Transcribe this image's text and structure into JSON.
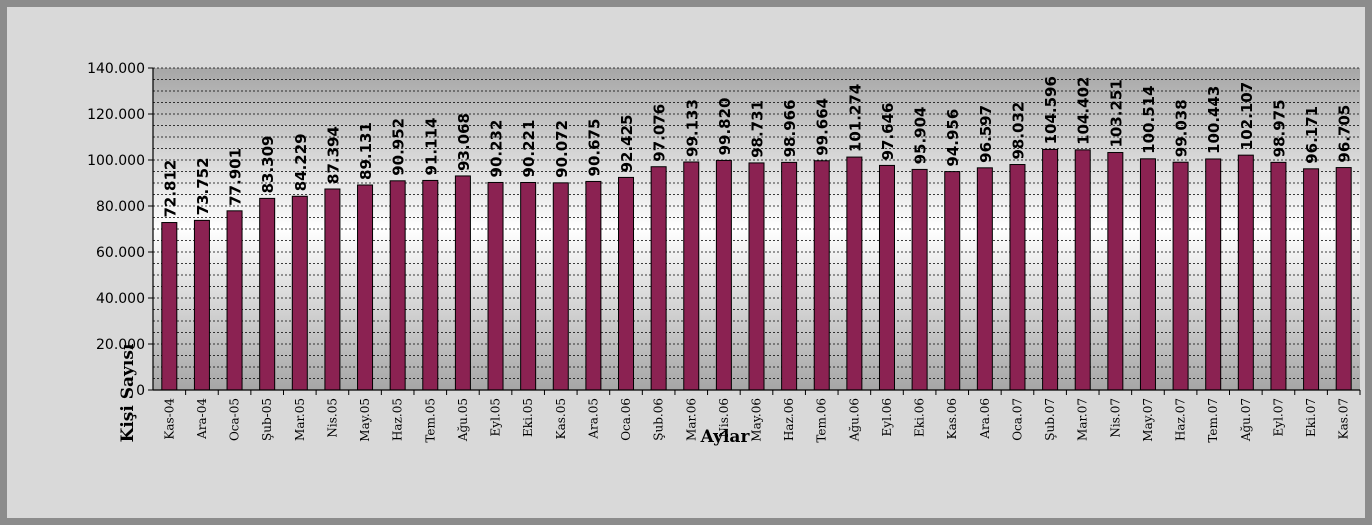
{
  "chart_data": {
    "type": "bar",
    "xlabel": "Aylar",
    "ylabel": "Kişi Sayısı",
    "ylim": [
      0,
      140000
    ],
    "yticks": [
      0,
      20000,
      40000,
      60000,
      80000,
      100000,
      120000,
      140000
    ],
    "ytick_labels": [
      "0",
      "20.000",
      "40.000",
      "60.000",
      "80.000",
      "100.000",
      "120.000",
      "140.000"
    ],
    "grid": true,
    "legend": "none",
    "bar_color": "#8b2252",
    "categories": [
      "Kas-04",
      "Ara-04",
      "Oca-05",
      "Şub-05",
      "Mar.05",
      "Nis.05",
      "May.05",
      "Haz.05",
      "Tem.05",
      "Ağu.05",
      "Eyl.05",
      "Eki.05",
      "Kas.05",
      "Ara.05",
      "Oca.06",
      "Şub.06",
      "Mar.06",
      "Nis.06",
      "May.06",
      "Haz.06",
      "Tem.06",
      "Ağu.06",
      "Eyl.06",
      "Eki.06",
      "Kas.06",
      "Ara.06",
      "Oca.07",
      "Şub.07",
      "Mar.07",
      "Nis.07",
      "May.07",
      "Haz.07",
      "Tem.07",
      "Ağu.07",
      "Eyl.07",
      "Eki.07",
      "Kas.07"
    ],
    "values": [
      72812,
      73752,
      77901,
      83309,
      84229,
      87394,
      89131,
      90952,
      91114,
      93068,
      90232,
      90221,
      90072,
      90675,
      92425,
      97076,
      99133,
      99820,
      98731,
      98966,
      99664,
      101274,
      97646,
      95904,
      94956,
      96597,
      98032,
      104596,
      104402,
      103251,
      100514,
      99038,
      100443,
      102107,
      98975,
      96171,
      96705
    ],
    "data_labels": [
      "72.812",
      "73.752",
      "77.901",
      "83.309",
      "84.229",
      "87.394",
      "89.131",
      "90.952",
      "91.114",
      "93.068",
      "90.232",
      "90.221",
      "90.072",
      "90.675",
      "92.425",
      "97.076",
      "99.133",
      "99.820",
      "98.731",
      "98.966",
      "99.664",
      "101.274",
      "97.646",
      "95.904",
      "94.956",
      "96.597",
      "98.032",
      "104.596",
      "104.402",
      "103.251",
      "100.514",
      "99.038",
      "100.443",
      "102.107",
      "98.975",
      "96.171",
      "96.705"
    ]
  }
}
